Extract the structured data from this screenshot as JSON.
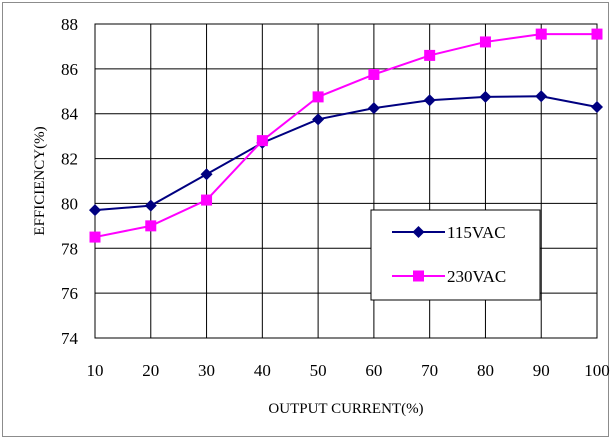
{
  "chart_data": {
    "type": "line",
    "title": "",
    "xlabel": "OUTPUT CURRENT(%)",
    "ylabel": "EFFICIENCY(%)",
    "x": [
      10,
      20,
      30,
      40,
      50,
      60,
      70,
      80,
      90,
      100
    ],
    "xlim": [
      10,
      100
    ],
    "ylim": [
      74,
      88
    ],
    "x_ticks": [
      "10",
      "20",
      "30",
      "40",
      "50",
      "60",
      "70",
      "80",
      "90",
      "100"
    ],
    "y_ticks": [
      "74",
      "76",
      "78",
      "80",
      "82",
      "84",
      "86",
      "88"
    ],
    "grid": true,
    "legend_position": "lower-right",
    "series": [
      {
        "name": "115VAC",
        "color": "#000080",
        "marker": "diamond",
        "values": [
          79.7,
          79.9,
          81.3,
          82.7,
          83.75,
          84.25,
          84.6,
          84.75,
          84.78,
          84.3
        ]
      },
      {
        "name": "230VAC",
        "color": "#ff00ff",
        "marker": "square",
        "values": [
          78.5,
          79.0,
          80.15,
          82.8,
          84.75,
          85.75,
          86.6,
          87.2,
          87.55,
          87.55
        ]
      }
    ]
  }
}
